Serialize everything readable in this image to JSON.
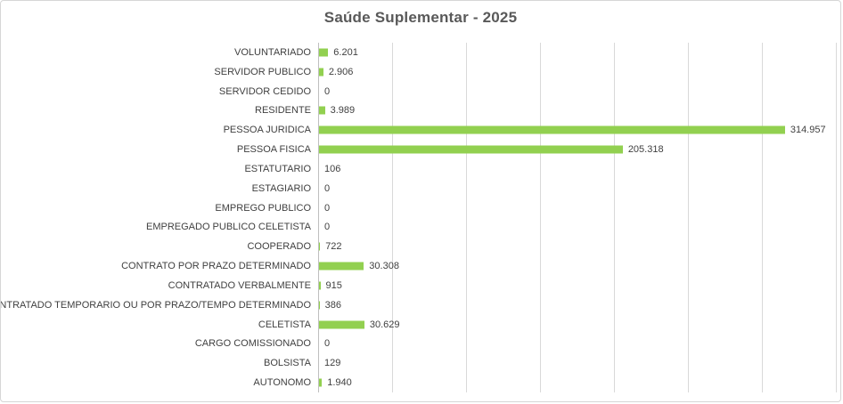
{
  "window": {
    "background": "#ffffff",
    "frame_border_color": "#d6d6d6"
  },
  "chart_data": {
    "type": "bar",
    "orientation": "horizontal",
    "title": "Saúde Suplementar - 2025",
    "xlabel": "",
    "ylabel": "",
    "legend": "none",
    "grid": true,
    "xlim": [
      0,
      350000
    ],
    "gridline_interval": 50000,
    "categories": [
      "VOLUNTARIADO",
      "SERVIDOR PUBLICO",
      "SERVIDOR CEDIDO",
      "RESIDENTE",
      "PESSOA JURIDICA",
      "PESSOA FISICA",
      "ESTATUTARIO",
      "ESTAGIARIO",
      "EMPREGO PUBLICO",
      "EMPREGADO PUBLICO CELETISTA",
      "COOPERADO",
      "CONTRATO POR PRAZO DETERMINADO",
      "CONTRATADO VERBALMENTE",
      "CONTRATADO TEMPORARIO OU POR PRAZO/TEMPO DETERMINADO",
      "CELETISTA",
      "CARGO COMISSIONADO",
      "BOLSISTA",
      "AUTONOMO"
    ],
    "values": [
      6201,
      2906,
      0,
      3989,
      314957,
      205318,
      106,
      0,
      0,
      0,
      722,
      30308,
      915,
      386,
      30629,
      0,
      129,
      1940
    ],
    "value_labels": [
      "6.201",
      "2.906",
      "0",
      "3.989",
      "314.957",
      "205.318",
      "106",
      "0",
      "0",
      "0",
      "722",
      "30.308",
      "915",
      "386",
      "30.629",
      "0",
      "129",
      "1.940"
    ],
    "bar_color": "#92D050",
    "title_color": "#595959",
    "label_color": "#404040",
    "gridline_color": "#D9D9D9",
    "axis_line_color": "#BFBFBF"
  }
}
